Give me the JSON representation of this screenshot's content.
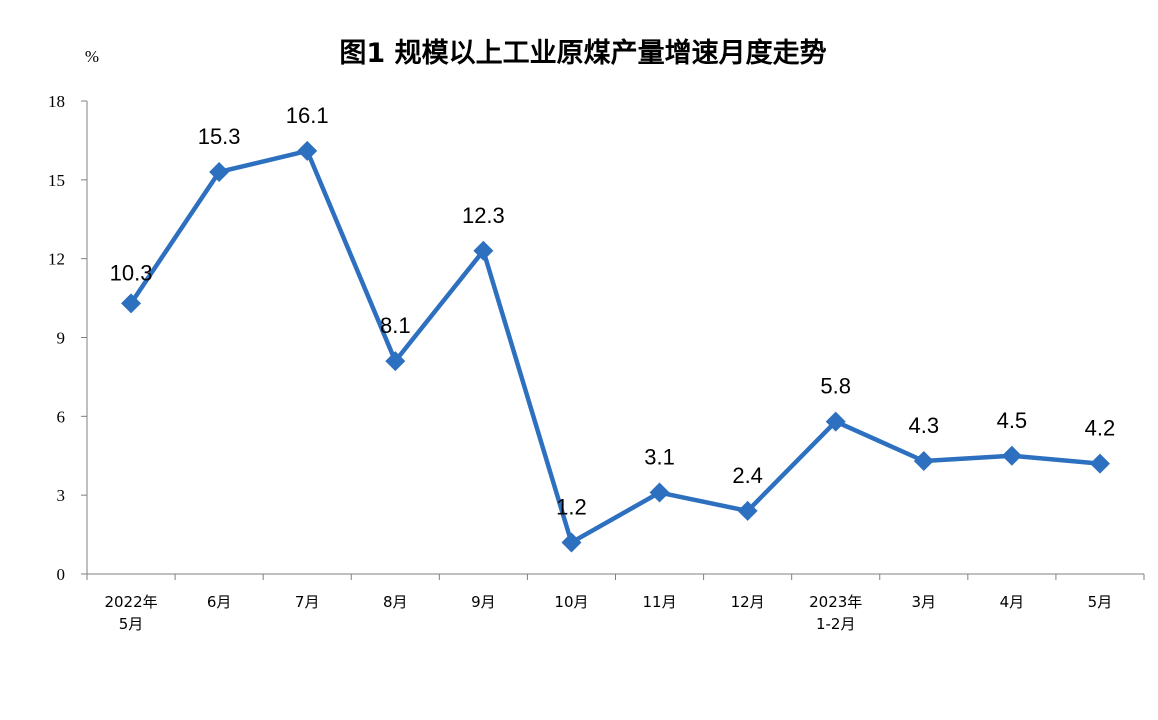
{
  "chart_data": {
    "type": "line",
    "title": "图1  规模以上工业原煤产量增速月度走势",
    "ylabel": "%",
    "xlabel": "",
    "ylim": [
      0,
      18
    ],
    "yticks": [
      0,
      3,
      6,
      9,
      12,
      15,
      18
    ],
    "grid": false,
    "legend": "none",
    "categories": [
      [
        "2022年",
        "5月"
      ],
      [
        "6月"
      ],
      [
        "7月"
      ],
      [
        "8月"
      ],
      [
        "9月"
      ],
      [
        "10月"
      ],
      [
        "11月"
      ],
      [
        "12月"
      ],
      [
        "2023年",
        "1-2月"
      ],
      [
        "3月"
      ],
      [
        "4月"
      ],
      [
        "5月"
      ]
    ],
    "series": [
      {
        "values": [
          10.3,
          15.3,
          16.1,
          8.1,
          12.3,
          1.2,
          3.1,
          2.4,
          5.8,
          4.3,
          4.5,
          4.2
        ],
        "labels": [
          "10.3",
          "15.3",
          "16.1",
          "8.1",
          "12.3",
          "1.2",
          "3.1",
          "2.4",
          "5.8",
          "4.3",
          "4.5",
          "4.2"
        ],
        "color": "#2e70c0"
      }
    ],
    "axis_color": "#808080"
  }
}
